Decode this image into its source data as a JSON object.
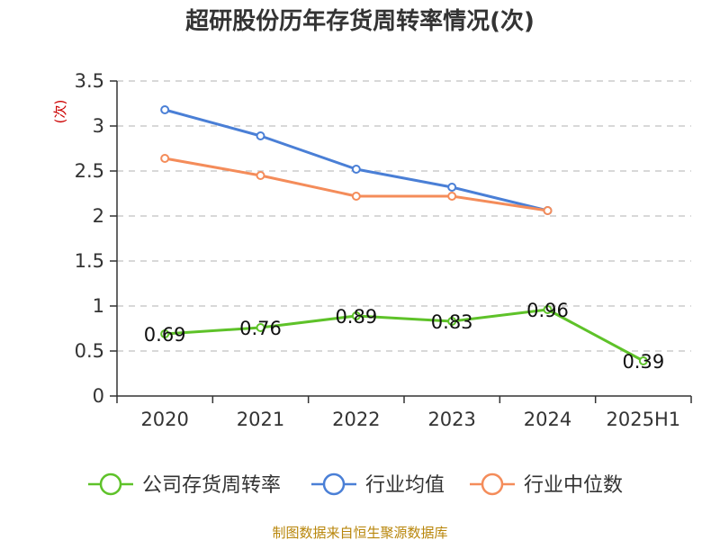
{
  "chart_data": {
    "type": "line",
    "title": "超研股份历年存货周转率情况(次)",
    "ylabel": "(次)",
    "categories": [
      "2020",
      "2021",
      "2022",
      "2023",
      "2024",
      "2025H1"
    ],
    "ylim": [
      0,
      3.5
    ],
    "yticks": [
      "0",
      "0.5",
      "1",
      "1.5",
      "2",
      "2.5",
      "3",
      "3.5"
    ],
    "grid": true,
    "legend_position": "bottom",
    "series": [
      {
        "name": "公司存货周转率",
        "color": "#5ec229",
        "values": [
          0.69,
          0.76,
          0.89,
          0.83,
          0.96,
          0.39
        ],
        "labels": [
          "0.69",
          "0.76",
          "0.89",
          "0.83",
          "0.96",
          "0.39"
        ],
        "show_labels": true
      },
      {
        "name": "行业均值",
        "color": "#4a7fd6",
        "values": [
          3.18,
          2.89,
          2.52,
          2.32,
          2.06,
          null
        ],
        "show_labels": false
      },
      {
        "name": "行业中位数",
        "color": "#f48c5a",
        "values": [
          2.64,
          2.45,
          2.22,
          2.22,
          2.06,
          null
        ],
        "show_labels": false
      }
    ],
    "source": "制图数据来自恒生聚源数据库"
  }
}
